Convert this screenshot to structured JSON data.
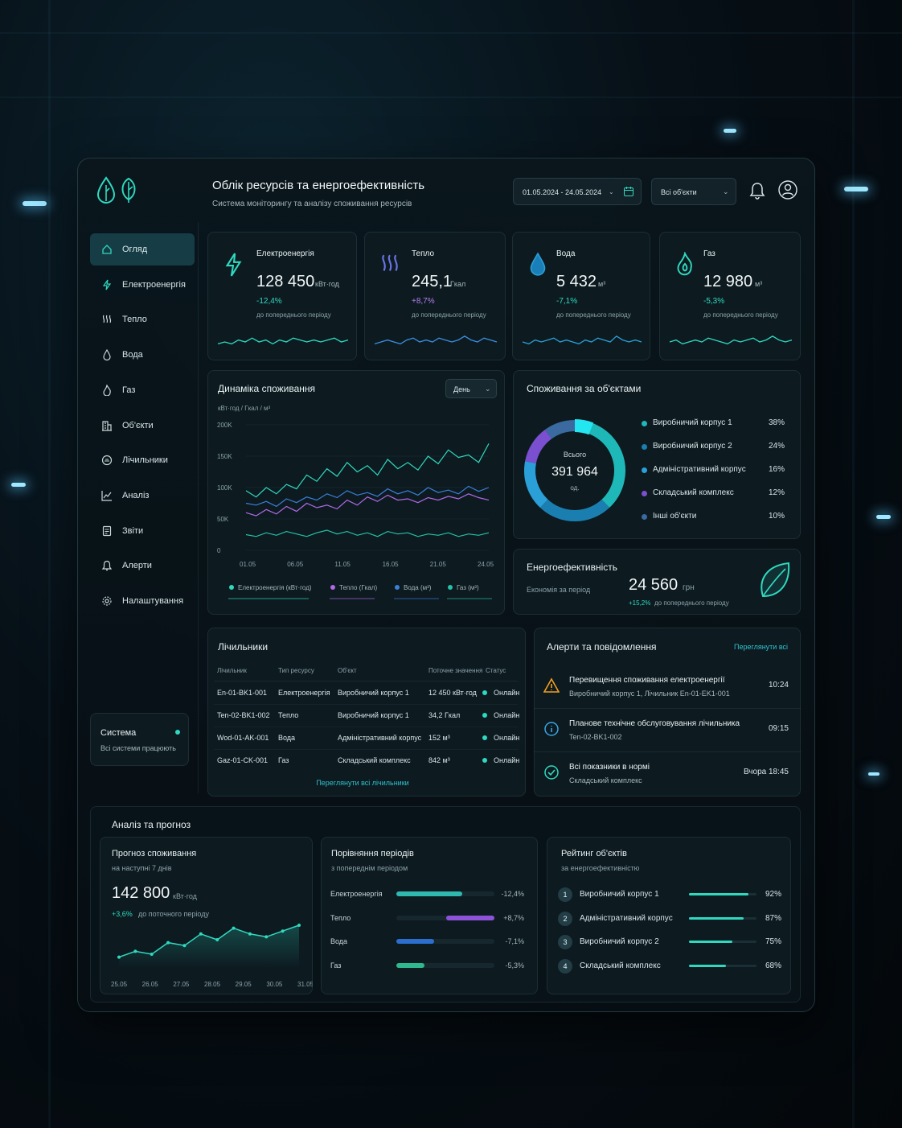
{
  "header": {
    "title": "Облік ресурсів та енергоефективність",
    "subtitle": "Система моніторингу та аналізу споживання ресурсів",
    "date_range": "01.05.2024 - 24.05.2024",
    "objects_select": "Всі об'єкти"
  },
  "nav": [
    {
      "label": "Огляд",
      "icon": "home-icon"
    },
    {
      "label": "Електроенергія",
      "icon": "bolt-icon"
    },
    {
      "label": "Тепло",
      "icon": "heat-icon"
    },
    {
      "label": "Вода",
      "icon": "drop-icon"
    },
    {
      "label": "Газ",
      "icon": "flame-icon"
    },
    {
      "label": "Об'єкти",
      "icon": "building-icon"
    },
    {
      "label": "Лічильники",
      "icon": "meter-icon"
    },
    {
      "label": "Аналіз",
      "icon": "chart-icon"
    },
    {
      "label": "Звіти",
      "icon": "report-icon"
    },
    {
      "label": "Алерти",
      "icon": "bell-icon"
    },
    {
      "label": "Налаштування",
      "icon": "gear-icon"
    }
  ],
  "system": {
    "title": "Система",
    "status": "Всі системи працюють"
  },
  "kpis": [
    {
      "title": "Електроенергія",
      "value": "128 450",
      "unit": "кВт·год",
      "change": "-12,4%",
      "note": "до попереднього періоду",
      "color": "#2fd9c0",
      "spark": [
        4,
        5,
        4,
        6,
        5,
        7,
        5,
        6,
        4,
        6,
        5,
        7,
        6,
        5,
        6,
        5,
        6,
        7,
        5,
        6
      ]
    },
    {
      "title": "Тепло",
      "value": "245,1",
      "unit": "Гкал",
      "change": "+8,7%",
      "note": "до попереднього періоду",
      "color": "#3b8ee0",
      "spark": [
        4,
        5,
        6,
        5,
        4,
        6,
        7,
        5,
        6,
        5,
        7,
        6,
        5,
        6,
        8,
        6,
        5,
        7,
        6,
        5
      ]
    },
    {
      "title": "Вода",
      "value": "5 432",
      "unit": "м³",
      "change": "-7,1%",
      "note": "до попереднього періоду",
      "color": "#2aa0d8",
      "spark": [
        5,
        4,
        6,
        5,
        6,
        7,
        5,
        6,
        5,
        4,
        6,
        5,
        7,
        6,
        5,
        8,
        6,
        5,
        6,
        5
      ]
    },
    {
      "title": "Газ",
      "value": "12 980",
      "unit": "м³",
      "change": "-5,3%",
      "note": "до попереднього періоду",
      "color": "#2fd9c0",
      "spark": [
        5,
        6,
        4,
        5,
        6,
        5,
        7,
        6,
        5,
        4,
        6,
        5,
        6,
        7,
        5,
        6,
        8,
        6,
        5,
        6
      ]
    }
  ],
  "consumption": {
    "title": "Динаміка споживання",
    "period": "День",
    "ylabel": "кВт·год / Гкал / м³"
  },
  "objects_donut": {
    "title": "Споживання за об'єктами",
    "center_label": "Всього",
    "center_value": "391 964",
    "center_unit": "од."
  },
  "efficiency": {
    "title": "Енергоефективність",
    "label": "Економія за період",
    "value": "24 560",
    "unit": "грн",
    "change": "+15,2%",
    "note": "до попереднього періоду"
  },
  "meters": {
    "title": "Лічильники",
    "columns": [
      "Лічильник",
      "Тип ресурсу",
      "Об'єкт",
      "Поточне значення",
      "Статус"
    ],
    "rows": [
      [
        "En-01-BK1-001",
        "Електроенергія",
        "Виробничий корпус 1",
        "12 450 кВт·год",
        "Онлайн"
      ],
      [
        "Ten-02-BK1-002",
        "Тепло",
        "Виробничий корпус 1",
        "34,2 Гкал",
        "Онлайн"
      ],
      [
        "Wod-01-AK-001",
        "Вода",
        "Адміністративний корпус",
        "152 м³",
        "Онлайн"
      ],
      [
        "Gaz-01-CK-001",
        "Газ",
        "Складський комплекс",
        "842 м³",
        "Онлайн"
      ]
    ],
    "link": "Переглянути всі лічильники"
  },
  "alerts": {
    "title": "Алерти та повідомлення",
    "link": "Переглянути всі",
    "items": [
      {
        "title": "Перевищення споживання електроенергії",
        "sub": "Виробничий корпус 1, Лічильник En-01-EK1-001",
        "time": "10:24",
        "icon": "warning-icon",
        "color": "#f0a020"
      },
      {
        "title": "Планове технічне обслуговування лічильника",
        "sub": "Ten-02-BK1-002",
        "time": "09:15",
        "icon": "info-icon",
        "color": "#3aa6e8"
      },
      {
        "title": "Всі показники в нормі",
        "sub": "Складський комплекс",
        "time": "Вчора 18:45",
        "icon": "check-icon",
        "color": "#2fd9c0"
      }
    ]
  },
  "analysis": {
    "title": "Аналіз та прогноз",
    "forecast": {
      "title": "Прогноз споживання",
      "sub": "на наступні 7 днів",
      "value": "142 800",
      "unit": "кВт·год",
      "change": "+3,6%",
      "note": "до поточного періоду"
    },
    "compare": {
      "title": "Порівняння періодів",
      "sub": "з попереднім періодом",
      "rows": [
        {
          "label": "Електроенергія",
          "value": "-12,4%",
          "pct": 0.124,
          "neg": true,
          "color": "#2fb8b0"
        },
        {
          "label": "Тепло",
          "value": "+8,7%",
          "pct": 0.087,
          "neg": false,
          "color": "#8e52d8"
        },
        {
          "label": "Вода",
          "value": "-7,1%",
          "pct": 0.071,
          "neg": true,
          "color": "#2a6fd0"
        },
        {
          "label": "Газ",
          "value": "-5,3%",
          "pct": 0.053,
          "neg": true,
          "color": "#2fb890"
        }
      ]
    },
    "rating": {
      "title": "Рейтинг об'єктів",
      "sub": "за енергоефективністю",
      "rows": [
        {
          "rank": "1",
          "name": "Виробничий корпус 1",
          "value": "92%",
          "pct": 0.92
        },
        {
          "rank": "2",
          "name": "Адміністративний корпус",
          "value": "87%",
          "pct": 0.87
        },
        {
          "rank": "3",
          "name": "Виробничий корпус 2",
          "value": "75%",
          "pct": 0.75
        },
        {
          "rank": "4",
          "name": "Складський комплекс",
          "value": "68%",
          "pct": 0.68
        }
      ]
    }
  },
  "chart_data": [
    {
      "type": "line",
      "title": "Динаміка споживання",
      "ylabel": "кВт·год / Гкал / м³",
      "ylim": [
        0,
        200000
      ],
      "yticks": [
        "200K",
        "150K",
        "100K",
        "50K",
        "0"
      ],
      "xticks": [
        "01.05",
        "06.05",
        "11.05",
        "16.05",
        "21.05",
        "24.05"
      ],
      "series": [
        {
          "name": "Електроенергія (кВт·год)",
          "color": "#2fd9c0",
          "values": [
            95000,
            85000,
            100000,
            90000,
            105000,
            98000,
            120000,
            110000,
            130000,
            118000,
            140000,
            125000,
            135000,
            120000,
            145000,
            130000,
            140000,
            128000,
            150000,
            138000,
            160000,
            148000,
            152000,
            140000,
            170000
          ]
        },
        {
          "name": "Тепло (Гкал)",
          "color": "#b06ae8",
          "values": [
            60000,
            55000,
            65000,
            58000,
            70000,
            62000,
            75000,
            68000,
            72000,
            66000,
            80000,
            72000,
            85000,
            78000,
            88000,
            80000,
            82000,
            76000,
            84000,
            80000,
            86000,
            82000,
            90000,
            84000,
            80000
          ]
        },
        {
          "name": "Вода (м³)",
          "color": "#3a7fd8",
          "values": [
            75000,
            72000,
            78000,
            70000,
            82000,
            76000,
            85000,
            80000,
            90000,
            84000,
            95000,
            88000,
            92000,
            86000,
            98000,
            90000,
            95000,
            88000,
            100000,
            92000,
            96000,
            90000,
            102000,
            94000,
            100000
          ]
        },
        {
          "name": "Газ (м³)",
          "color": "#22c4a8",
          "values": [
            25000,
            22000,
            28000,
            24000,
            30000,
            26000,
            22000,
            28000,
            32000,
            26000,
            30000,
            24000,
            28000,
            22000,
            30000,
            26000,
            28000,
            22000,
            26000,
            24000,
            28000,
            22000,
            26000,
            24000,
            28000
          ]
        }
      ]
    },
    {
      "type": "pie",
      "categories": [
        "Виробничий корпус 1",
        "Виробничий корпус 2",
        "Адміністративний корпус",
        "Складський комплекс",
        "Інші об'єкти"
      ],
      "values": [
        38,
        24,
        16,
        12,
        10
      ],
      "labels": [
        "38%",
        "24%",
        "16%",
        "12%",
        "10%"
      ],
      "colors": [
        "#1fb8b8",
        "#1a7fb0",
        "#2a9fd8",
        "#7a4fd0",
        "#3b6aa0"
      ]
    },
    {
      "type": "line",
      "title": "Прогноз споживання",
      "xticks": [
        "25.05",
        "26.05",
        "27.05",
        "28.05",
        "29.05",
        "30.05",
        "31.05"
      ],
      "values": [
        4,
        6,
        5,
        9,
        8,
        12,
        10,
        14,
        12,
        11,
        13,
        15
      ]
    }
  ]
}
